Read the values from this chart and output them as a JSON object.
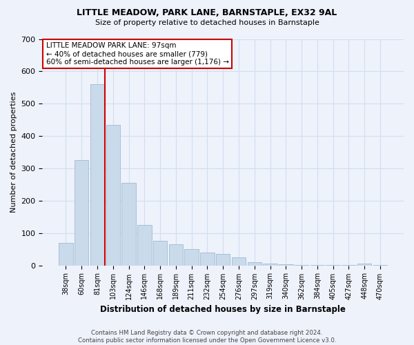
{
  "title": "LITTLE MEADOW, PARK LANE, BARNSTAPLE, EX32 9AL",
  "subtitle": "Size of property relative to detached houses in Barnstaple",
  "xlabel": "Distribution of detached houses by size in Barnstaple",
  "ylabel": "Number of detached properties",
  "categories": [
    "38sqm",
    "60sqm",
    "81sqm",
    "103sqm",
    "124sqm",
    "146sqm",
    "168sqm",
    "189sqm",
    "211sqm",
    "232sqm",
    "254sqm",
    "276sqm",
    "297sqm",
    "319sqm",
    "340sqm",
    "362sqm",
    "384sqm",
    "405sqm",
    "427sqm",
    "448sqm",
    "470sqm"
  ],
  "values": [
    70,
    325,
    560,
    435,
    255,
    125,
    75,
    65,
    50,
    40,
    35,
    25,
    10,
    5,
    3,
    2,
    1,
    1,
    1,
    5,
    1
  ],
  "bar_color": "#c9daea",
  "bar_edge_color": "#a8c0d6",
  "grid_color": "#d0dff0",
  "bg_color": "#eef2fb",
  "vline_color": "#cc0000",
  "vline_pos": 2.5,
  "annotation_text": "LITTLE MEADOW PARK LANE: 97sqm\n← 40% of detached houses are smaller (779)\n60% of semi-detached houses are larger (1,176) →",
  "annotation_box_color": "#ffffff",
  "annotation_box_edge": "#cc0000",
  "footnote": "Contains HM Land Registry data © Crown copyright and database right 2024.\nContains public sector information licensed under the Open Government Licence v3.0.",
  "ylim": [
    0,
    700
  ],
  "yticks": [
    0,
    100,
    200,
    300,
    400,
    500,
    600,
    700
  ],
  "title_fontsize": 9,
  "subtitle_fontsize": 8
}
